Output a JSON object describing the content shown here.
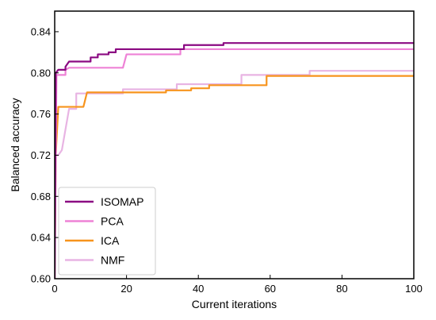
{
  "chart_data": {
    "type": "line",
    "title": "",
    "xlabel": "Current iterations",
    "ylabel": "Balanced accuracy",
    "xlim": [
      0,
      100
    ],
    "ylim": [
      0.6,
      0.86
    ],
    "xticks": [
      0,
      20,
      40,
      60,
      80,
      100
    ],
    "xtick_labels": [
      "0",
      "20",
      "40",
      "60",
      "80",
      "100"
    ],
    "yticks": [
      0.6,
      0.64,
      0.68,
      0.72,
      0.76,
      0.8,
      0.84
    ],
    "ytick_labels": [
      "0.60",
      "0.64",
      "0.68",
      "0.72",
      "0.76",
      "0.80",
      "0.84"
    ],
    "grid": false,
    "legend_position": "bottom-left",
    "step": true,
    "series": [
      {
        "name": "ISOMAP",
        "color": "#8B0A82",
        "points": [
          [
            0,
            0.6
          ],
          [
            0.3,
            0.8
          ],
          [
            1,
            0.803
          ],
          [
            3,
            0.806
          ],
          [
            4,
            0.811
          ],
          [
            9,
            0.811
          ],
          [
            10,
            0.815
          ],
          [
            12,
            0.818
          ],
          [
            15,
            0.82
          ],
          [
            17,
            0.823
          ],
          [
            36,
            0.827
          ],
          [
            47,
            0.829
          ],
          [
            100,
            0.829
          ]
        ]
      },
      {
        "name": "PCA",
        "color": "#EE82D6",
        "points": [
          [
            0,
            0.6
          ],
          [
            0.5,
            0.798
          ],
          [
            3,
            0.803
          ],
          [
            4,
            0.805
          ],
          [
            19,
            0.805
          ],
          [
            20,
            0.818
          ],
          [
            34,
            0.818
          ],
          [
            35,
            0.823
          ],
          [
            100,
            0.823
          ]
        ]
      },
      {
        "name": "ICA",
        "color": "#F7941D",
        "points": [
          [
            0,
            0.6
          ],
          [
            0.3,
            0.72
          ],
          [
            1,
            0.767
          ],
          [
            8,
            0.767
          ],
          [
            9,
            0.781
          ],
          [
            30,
            0.781
          ],
          [
            31,
            0.783
          ],
          [
            37,
            0.783
          ],
          [
            38,
            0.785
          ],
          [
            42,
            0.785
          ],
          [
            43,
            0.788
          ],
          [
            58,
            0.788
          ],
          [
            59,
            0.797
          ],
          [
            100,
            0.797
          ]
        ]
      },
      {
        "name": "NMF",
        "color": "#E8B4E3",
        "points": [
          [
            0,
            0.72
          ],
          [
            1,
            0.72
          ],
          [
            2,
            0.725
          ],
          [
            3,
            0.745
          ],
          [
            4,
            0.765
          ],
          [
            6,
            0.78
          ],
          [
            18,
            0.78
          ],
          [
            19,
            0.784
          ],
          [
            33,
            0.784
          ],
          [
            34,
            0.789
          ],
          [
            51,
            0.789
          ],
          [
            52,
            0.798
          ],
          [
            70,
            0.798
          ],
          [
            71,
            0.802
          ],
          [
            100,
            0.802
          ]
        ]
      }
    ]
  }
}
